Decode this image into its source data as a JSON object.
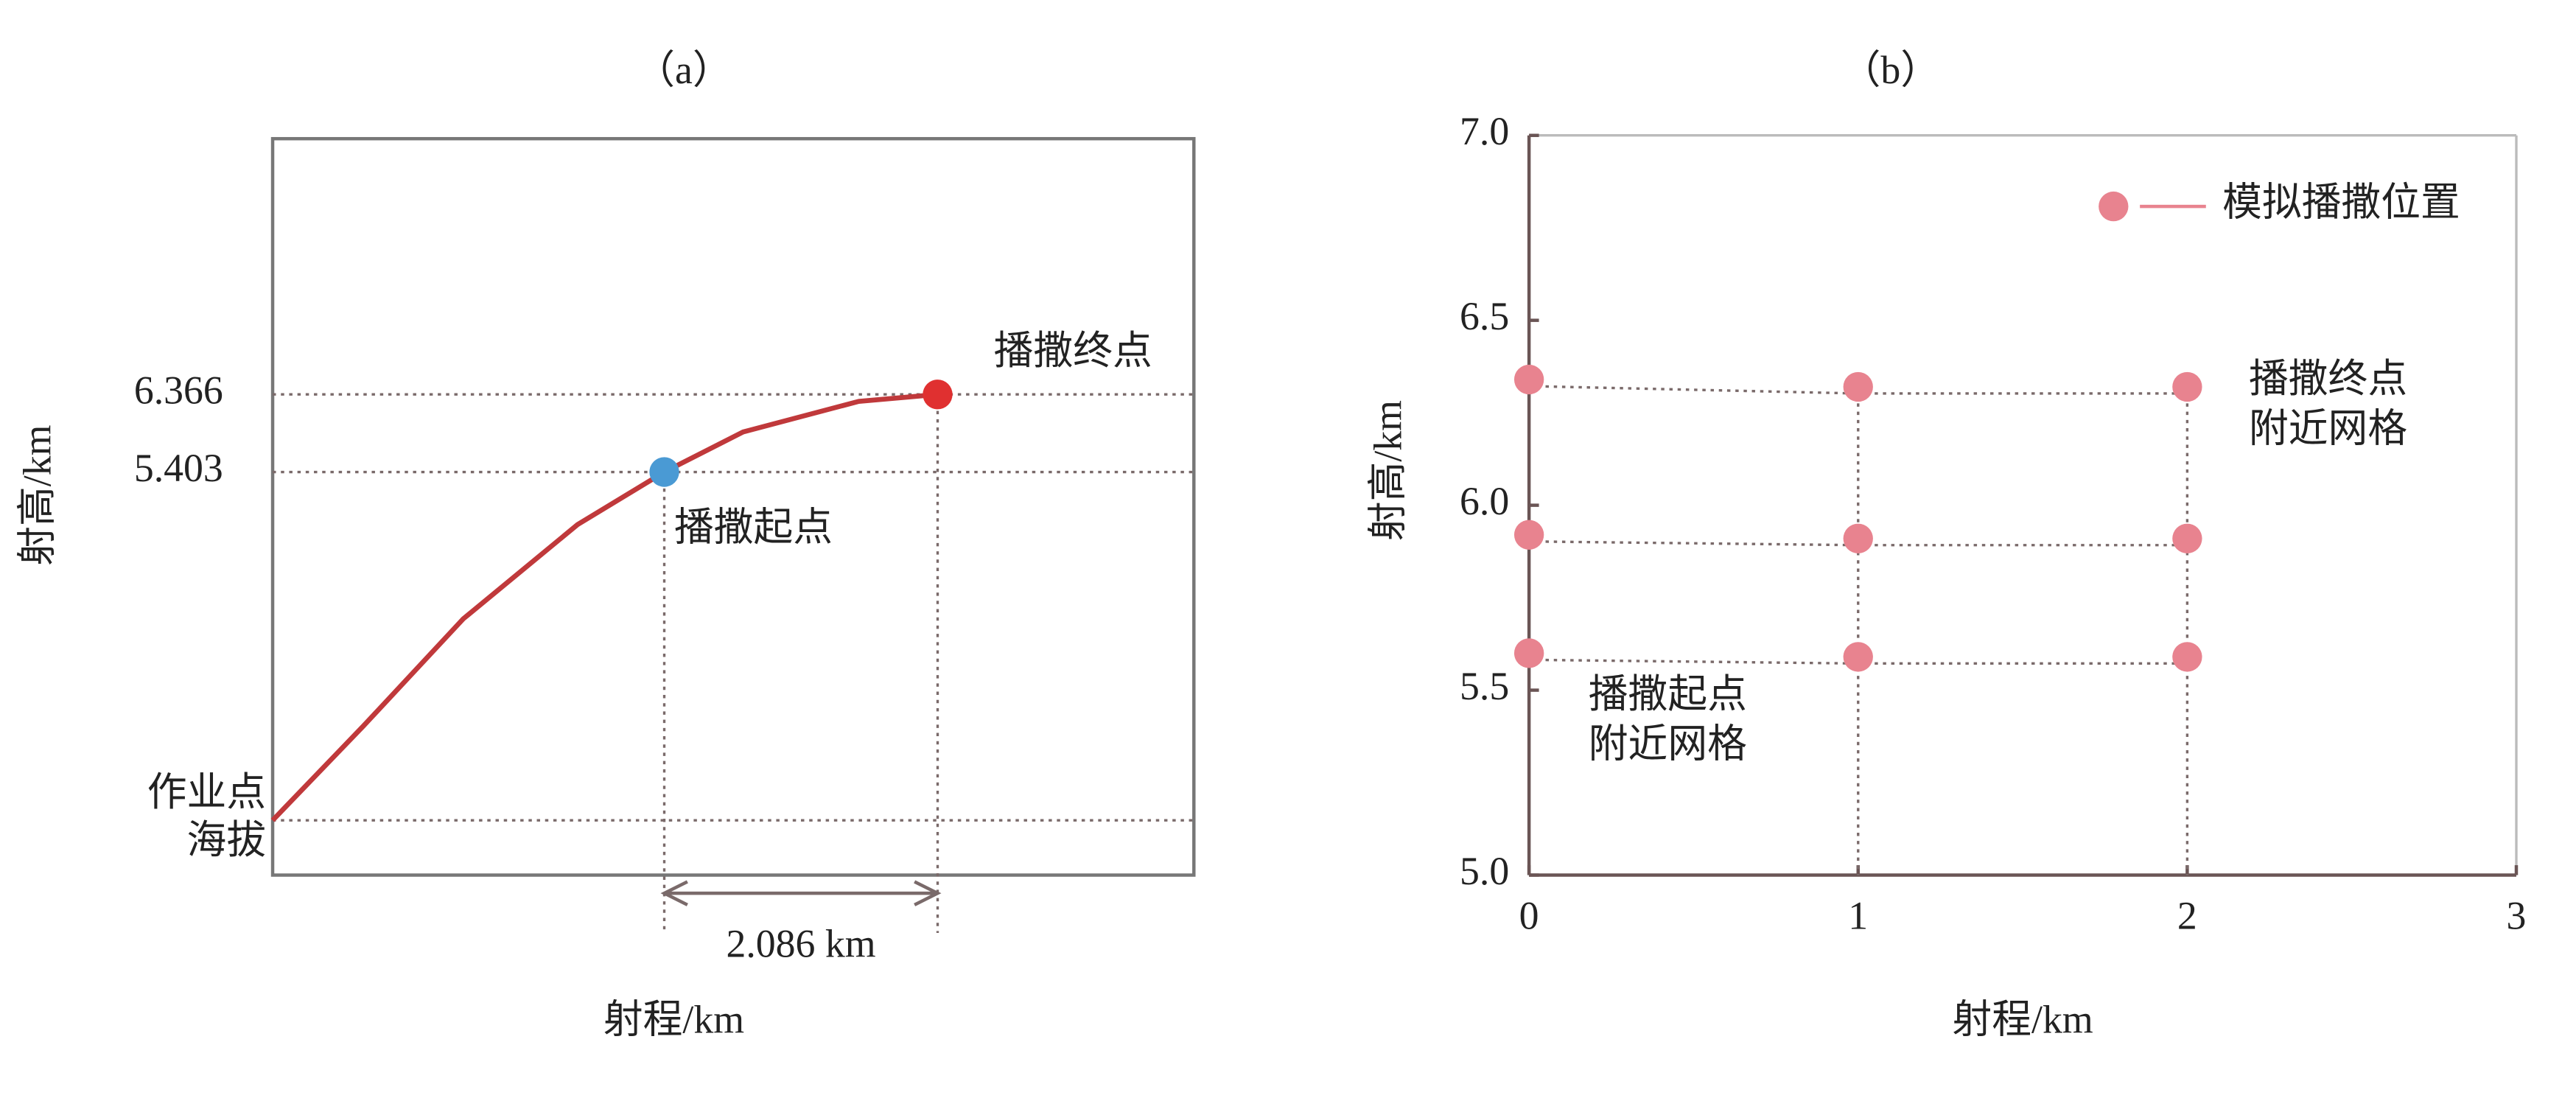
{
  "chart_data": [
    {
      "type": "line",
      "title": "（a）",
      "xlabel": "射程/km",
      "ylabel": "射高/km",
      "xlim": [
        0,
        7.01
      ],
      "ylim": [
        0.4,
        9.54
      ],
      "yticks": [
        6.366,
        5.403,
        {
          "value": 1.08,
          "label": [
            "作业点",
            "海拔"
          ]
        }
      ],
      "series": [
        {
          "color": "#c0393b",
          "x": [
            0,
            0.69,
            1.45,
            2.32,
            2.98,
            3.58,
            4.46,
            5.06
          ],
          "values": [
            1.08,
            2.25,
            3.58,
            4.75,
            5.403,
            5.9,
            6.28,
            6.366
          ]
        }
      ],
      "markers": [
        {
          "label": "播撒起点",
          "x": 2.98,
          "y": 5.403,
          "color": "#4a9ad4"
        },
        {
          "label": "播撒终点",
          "x": 5.06,
          "y": 6.366,
          "color": "#e03030"
        }
      ],
      "span": {
        "from": 2.98,
        "to": 5.06,
        "label": "2.086 km"
      }
    },
    {
      "type": "scatter",
      "title": "（b）",
      "xlabel": "射程/km",
      "ylabel": "射高/km",
      "xlim": [
        0,
        3
      ],
      "ylim": [
        5,
        7
      ],
      "xticks": [
        0,
        1,
        2,
        3
      ],
      "yticks": [
        {
          "value": 5,
          "label": "5.0"
        },
        5.5,
        {
          "value": 6,
          "label": "6.0"
        },
        6.5,
        {
          "value": 7,
          "label": "7.0"
        }
      ],
      "series": [
        {
          "name": "模拟播撒位置",
          "color": "#e8838f",
          "x": [
            0,
            1,
            2,
            0,
            1,
            2,
            0,
            1,
            2
          ],
          "values": [
            6.34,
            6.32,
            6.32,
            5.92,
            5.91,
            5.91,
            5.6,
            5.59,
            5.59
          ]
        }
      ],
      "annotations": [
        [
          "播撒终点",
          "附近网格"
        ],
        [
          "播撒起点",
          "附近网格"
        ]
      ]
    }
  ]
}
